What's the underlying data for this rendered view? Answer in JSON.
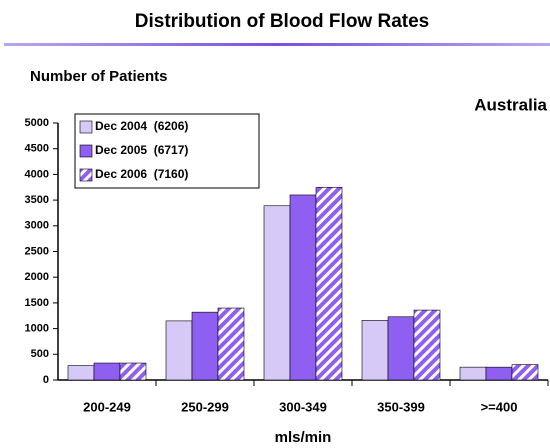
{
  "chart_data": {
    "type": "bar",
    "title": "Distribution of Blood Flow Rates",
    "y_label": "Number of Patients",
    "x_label": "mls/min",
    "annotation": "Australia",
    "categories": [
      "200-249",
      "250-299",
      "300-349",
      "350-399",
      ">=400"
    ],
    "series": [
      {
        "name": "Dec 2004  (6206)",
        "color": "#d6c8f7",
        "values": [
          280,
          1150,
          3390,
          1160,
          250
        ]
      },
      {
        "name": "Dec 2005  (6717)",
        "color": "#8f5ff2",
        "values": [
          330,
          1320,
          3600,
          1230,
          250
        ]
      },
      {
        "name": "Dec 2006  (7160)",
        "color": "#8f5ff2",
        "hatch": true,
        "values": [
          330,
          1400,
          3750,
          1360,
          300
        ]
      }
    ],
    "ylim": [
      0,
      5000
    ],
    "yticks": [
      0,
      500,
      1000,
      1500,
      2000,
      2500,
      3000,
      3500,
      4000,
      4500,
      5000
    ],
    "grid": false,
    "legend": "top-left"
  }
}
